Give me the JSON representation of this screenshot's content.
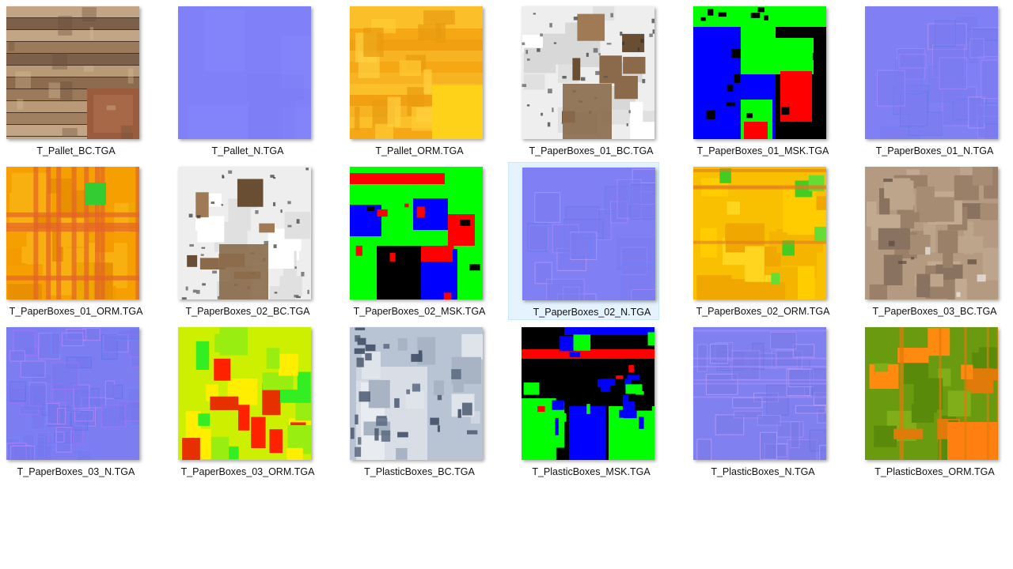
{
  "view": "large-icons",
  "selected_index": 9,
  "files": [
    {
      "name": "T_Pallet_BC.TGA",
      "type": "wood",
      "icon": "texture-thumbnail"
    },
    {
      "name": "T_Pallet_N.TGA",
      "type": "normal-flat",
      "icon": "texture-thumbnail"
    },
    {
      "name": "T_Pallet_ORM.TGA",
      "type": "orm-yellow",
      "icon": "texture-thumbnail"
    },
    {
      "name": "T_PaperBoxes_01_BC.TGA",
      "type": "paper-white",
      "icon": "texture-thumbnail"
    },
    {
      "name": "T_PaperBoxes_01_MSK.TGA",
      "type": "mask-rgb",
      "icon": "texture-thumbnail"
    },
    {
      "name": "T_PaperBoxes_01_N.TGA",
      "type": "normal-blocks",
      "icon": "texture-thumbnail"
    },
    {
      "name": "T_PaperBoxes_01_ORM.TGA",
      "type": "orm-orange",
      "icon": "texture-thumbnail"
    },
    {
      "name": "T_PaperBoxes_02_BC.TGA",
      "type": "paper-white",
      "icon": "texture-thumbnail"
    },
    {
      "name": "T_PaperBoxes_02_MSK.TGA",
      "type": "mask-rgb-2",
      "icon": "texture-thumbnail"
    },
    {
      "name": "T_PaperBoxes_02_N.TGA",
      "type": "normal-blocks",
      "icon": "texture-thumbnail"
    },
    {
      "name": "T_PaperBoxes_02_ORM.TGA",
      "type": "orm-yellow-green",
      "icon": "texture-thumbnail"
    },
    {
      "name": "T_PaperBoxes_03_BC.TGA",
      "type": "cardboard",
      "icon": "texture-thumbnail"
    },
    {
      "name": "T_PaperBoxes_03_N.TGA",
      "type": "normal-dense",
      "icon": "texture-thumbnail"
    },
    {
      "name": "T_PaperBoxes_03_ORM.TGA",
      "type": "orm-rgy",
      "icon": "texture-thumbnail"
    },
    {
      "name": "T_PlasticBoxes_BC.TGA",
      "type": "plastic-grey",
      "icon": "texture-thumbnail"
    },
    {
      "name": "T_PlasticBoxes_MSK.TGA",
      "type": "mask-rgb-3",
      "icon": "texture-thumbnail"
    },
    {
      "name": "T_PlasticBoxes_N.TGA",
      "type": "normal-plastic",
      "icon": "texture-thumbnail"
    },
    {
      "name": "T_PlasticBoxes_ORM.TGA",
      "type": "orm-green-orange",
      "icon": "texture-thumbnail"
    }
  ],
  "colors": {
    "selection_bg": "#e5f3ff",
    "selection_border": "#cce8ff",
    "normal_map": "#7f7fff",
    "mask_red": "#ff0000",
    "mask_green": "#00ff00",
    "mask_blue": "#0000ff"
  }
}
